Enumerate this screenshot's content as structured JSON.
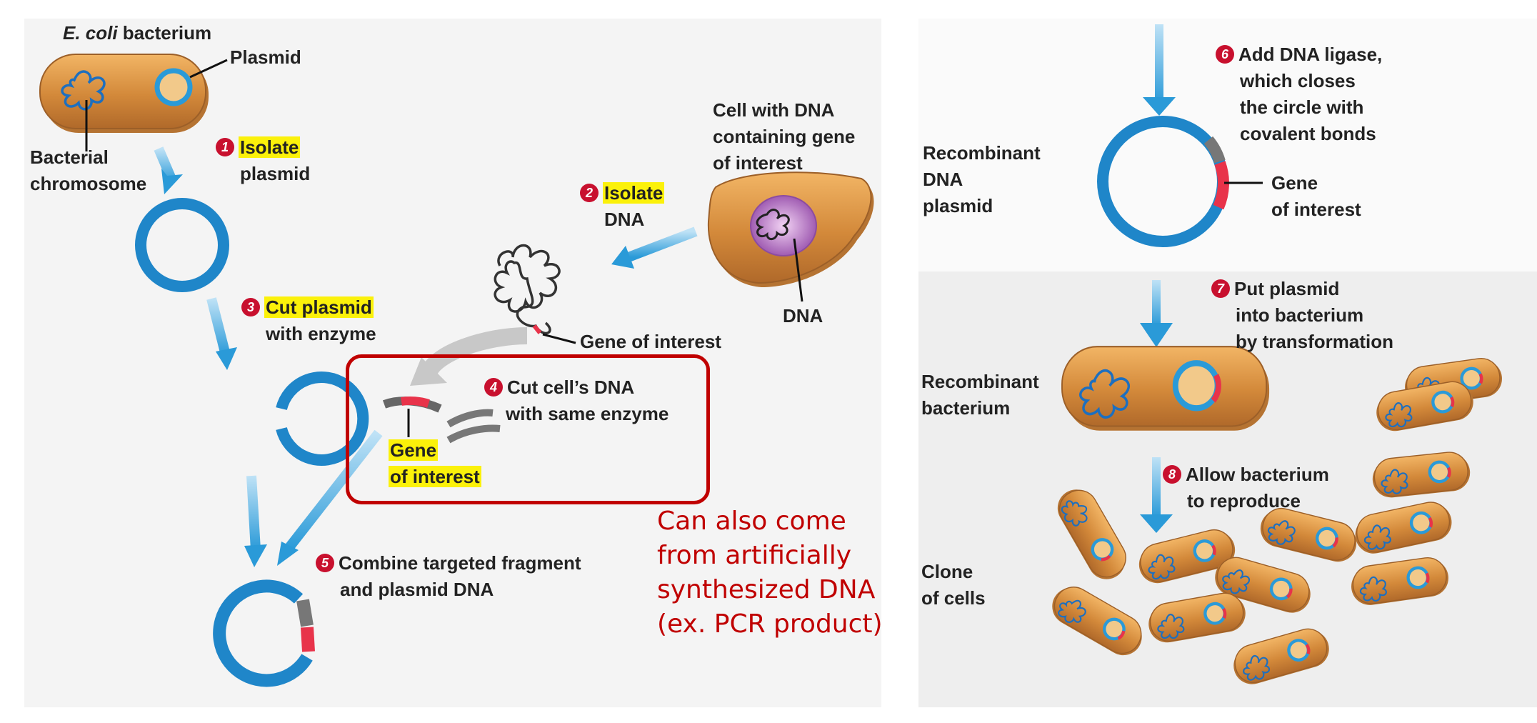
{
  "left_panel": {
    "ecoli": [
      "E. coli",
      " bacterium"
    ],
    "plasmid": "Plasmid",
    "bacterial_chromosome": [
      "Bacterial",
      "chromosome"
    ],
    "step1": {
      "number": "1",
      "highlight": "Isolate",
      "rest": "plasmid"
    },
    "cell_with_dna": [
      "Cell with DNA",
      "containing gene",
      "of interest"
    ],
    "step2": {
      "number": "2",
      "highlight": "Isolate",
      "rest": "DNA"
    },
    "dna": "DNA",
    "gene_of_interest": "Gene of interest",
    "step3": {
      "number": "3",
      "highlight": "Cut plasmid",
      "rest": "with enzyme"
    },
    "step4": {
      "number": "4",
      "lines": [
        "Cut cell’s DNA",
        "with same enzyme"
      ]
    },
    "gene_of_interest_hl": [
      "Gene",
      "of interest"
    ],
    "step5": {
      "number": "5",
      "lines": [
        "Combine targeted fragment",
        "and plasmid DNA"
      ]
    },
    "note": [
      "Can also come",
      "from artificially",
      "synthesized DNA",
      "(ex. PCR product)"
    ]
  },
  "right_panel": {
    "step6": {
      "number": "6",
      "lines": [
        "Add DNA ligase,",
        "which closes",
        "the circle with",
        "covalent bonds"
      ]
    },
    "recombinant_plasmid": [
      "Recombinant",
      "DNA",
      "plasmid"
    ],
    "gene": [
      "Gene",
      "of interest"
    ],
    "step7": {
      "number": "7",
      "lines": [
        "Put plasmid",
        "into bacterium",
        "by transformation"
      ]
    },
    "recombinant_bacterium": [
      "Recombinant",
      "bacterium"
    ],
    "step8": {
      "number": "8",
      "lines": [
        "Allow bacterium",
        "to reproduce"
      ]
    },
    "clone": [
      "Clone",
      "of cells"
    ]
  },
  "colors": {
    "plasmid": "#2a9ad8",
    "gene": "#e8334a",
    "cell": "#d08a3c",
    "note": "#c00000",
    "highlight": "#fbf10a",
    "step_badge": "#c8102e"
  }
}
